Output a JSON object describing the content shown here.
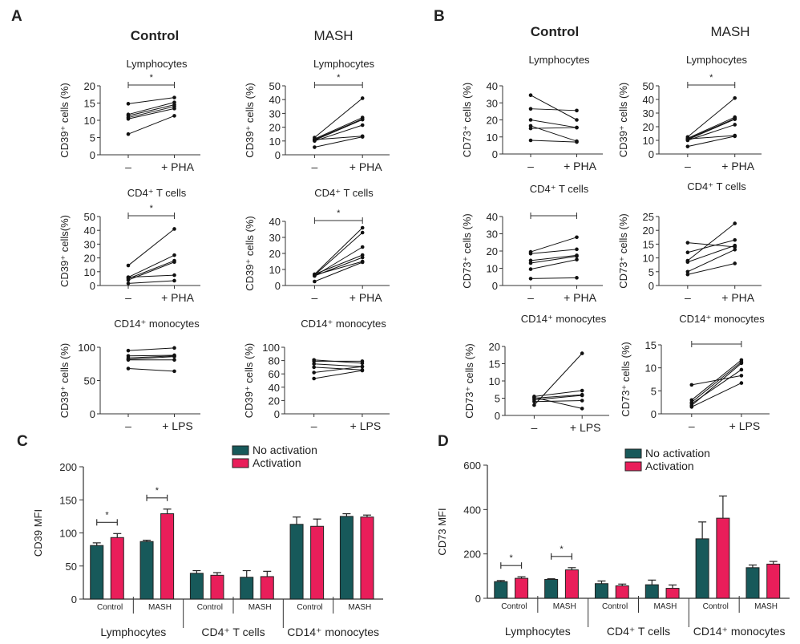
{
  "panels": {
    "A": {
      "letter": "A",
      "columns": [
        "Control",
        "MASH"
      ]
    },
    "B": {
      "letter": "B",
      "columns": [
        "Control",
        "MASH"
      ]
    },
    "C": {
      "letter": "C"
    },
    "D": {
      "letter": "D"
    }
  },
  "colors": {
    "no_activation": "#17595a",
    "activation": "#e91e5a",
    "axis": "#333333"
  },
  "chart_data": [
    {
      "id": "A-control-lymph",
      "type": "paired-line",
      "panel": "A",
      "column": "Control",
      "title": "Lymphocytes",
      "ylabel": "CD39⁺ cells (%)",
      "ylim": [
        0,
        20
      ],
      "yticks": [
        0,
        5,
        10,
        15,
        20
      ],
      "x": [
        "–",
        "+ PHA"
      ],
      "significance": "*",
      "bracket": true,
      "pairs": [
        [
          14.8,
          16.6
        ],
        [
          11.7,
          15.2
        ],
        [
          11.3,
          14.5
        ],
        [
          10.8,
          14.0
        ],
        [
          10.4,
          13.4
        ],
        [
          6.0,
          11.3
        ]
      ]
    },
    {
      "id": "A-mash-lymph",
      "type": "paired-line",
      "panel": "A",
      "column": "MASH",
      "title": "Lymphocytes",
      "ylabel": "CD39⁺ cells (%)",
      "ylim": [
        0,
        50
      ],
      "yticks": [
        0,
        10,
        20,
        30,
        40,
        50
      ],
      "x": [
        "–",
        "+ PHA"
      ],
      "significance": "*",
      "bracket": true,
      "pairs": [
        [
          12.5,
          41.0
        ],
        [
          11.5,
          27.0
        ],
        [
          11.0,
          26.0
        ],
        [
          10.5,
          25.5
        ],
        [
          10.0,
          21.5
        ],
        [
          11.0,
          13.5
        ],
        [
          5.5,
          13.0
        ]
      ]
    },
    {
      "id": "A-control-cd4",
      "type": "paired-line",
      "panel": "A",
      "column": "Control",
      "title": "CD4⁺ T cells",
      "ylabel": "CD39⁺ cells(%)",
      "ylim": [
        0,
        50
      ],
      "yticks": [
        0,
        10,
        20,
        30,
        40,
        50
      ],
      "x": [
        "–",
        "+ PHA"
      ],
      "significance": "*",
      "bracket": true,
      "pairs": [
        [
          14.5,
          41.0
        ],
        [
          6.0,
          22.0
        ],
        [
          5.0,
          18.0
        ],
        [
          4.0,
          17.0
        ],
        [
          6.0,
          7.5
        ],
        [
          1.5,
          3.5
        ]
      ]
    },
    {
      "id": "A-mash-cd4",
      "type": "paired-line",
      "panel": "A",
      "column": "MASH",
      "title": "CD4⁺ T cells",
      "ylabel": "CD39⁺ cells (%)",
      "ylim": [
        0,
        40
      ],
      "yticks": [
        0,
        10,
        20,
        30,
        40
      ],
      "x": [
        "–",
        "+ PHA"
      ],
      "significance": "*",
      "bracket": true,
      "pairs": [
        [
          7.0,
          36.0
        ],
        [
          6.5,
          33.0
        ],
        [
          6.0,
          24.0
        ],
        [
          7.0,
          19.0
        ],
        [
          6.0,
          17.5
        ],
        [
          6.5,
          15.0
        ],
        [
          2.5,
          14.5
        ]
      ]
    },
    {
      "id": "A-control-cd14",
      "type": "paired-line",
      "panel": "A",
      "column": "Control",
      "title": "CD14⁺ monocytes",
      "ylabel": "CD39⁺ cells (%)",
      "ylim": [
        0,
        100
      ],
      "yticks": [
        0,
        50,
        100
      ],
      "x": [
        "–",
        "+ LPS"
      ],
      "significance": "",
      "bracket": false,
      "pairs": [
        [
          95,
          99
        ],
        [
          87,
          88
        ],
        [
          84,
          87
        ],
        [
          82,
          86
        ],
        [
          81,
          81
        ],
        [
          68,
          64
        ]
      ]
    },
    {
      "id": "A-mash-cd14",
      "type": "paired-line",
      "panel": "A",
      "column": "MASH",
      "title": "CD14⁺ monocytes",
      "ylabel": "CD39⁺ cells (%)",
      "ylim": [
        0,
        100
      ],
      "yticks": [
        0,
        20,
        40,
        60,
        80,
        100
      ],
      "x": [
        "–",
        "+ LPS"
      ],
      "significance": "",
      "bracket": false,
      "pairs": [
        [
          81,
          76
        ],
        [
          79,
          79
        ],
        [
          75,
          71
        ],
        [
          70,
          66
        ],
        [
          62,
          71
        ],
        [
          53,
          65
        ]
      ]
    },
    {
      "id": "B-control-lymph",
      "type": "paired-line",
      "panel": "B",
      "column": "Control",
      "title": "Lymphocytes",
      "ylabel": "CD73⁺ cells (%)",
      "ylim": [
        0,
        40
      ],
      "yticks": [
        0,
        10,
        20,
        30,
        40
      ],
      "x": [
        "–",
        "+ PHA"
      ],
      "significance": "",
      "bracket": false,
      "pairs": [
        [
          34.5,
          20.0
        ],
        [
          26.5,
          25.5
        ],
        [
          20.0,
          15.5
        ],
        [
          16.5,
          7.5
        ],
        [
          15.0,
          15.5
        ],
        [
          8.0,
          7.0
        ]
      ]
    },
    {
      "id": "B-mash-lymph",
      "type": "paired-line",
      "panel": "B",
      "column": "MASH",
      "title": "Lymphocytes",
      "ylabel": "CD39⁺ cells (%)",
      "ylim": [
        0,
        50
      ],
      "yticks": [
        0,
        10,
        20,
        30,
        40,
        50
      ],
      "x": [
        "–",
        "+ PHA"
      ],
      "significance": "*",
      "bracket": true,
      "pairs": [
        [
          12.5,
          41.0
        ],
        [
          11.5,
          27.0
        ],
        [
          11.0,
          26.0
        ],
        [
          10.5,
          25.5
        ],
        [
          10.0,
          21.5
        ],
        [
          11.0,
          13.5
        ],
        [
          5.5,
          13.0
        ]
      ]
    },
    {
      "id": "B-control-cd4",
      "type": "paired-line",
      "panel": "B",
      "column": "Control",
      "title": "CD4⁺ T cells",
      "ylabel": "CD73⁺ cells (%)",
      "ylim": [
        0,
        40
      ],
      "yticks": [
        0,
        10,
        20,
        30,
        40
      ],
      "x": [
        "–",
        "+ PHA"
      ],
      "significance": "",
      "bracket": true,
      "pairs": [
        [
          19.5,
          28.0
        ],
        [
          18.5,
          21.0
        ],
        [
          14.5,
          17.5
        ],
        [
          13.0,
          17.0
        ],
        [
          9.5,
          15.0
        ],
        [
          4.0,
          4.5
        ]
      ]
    },
    {
      "id": "B-mash-cd4",
      "type": "paired-line",
      "panel": "B",
      "column": "MASH",
      "title": "CD4⁺ T cells",
      "ylabel": "CD73⁺ cells (%)",
      "ylim": [
        0,
        25
      ],
      "yticks": [
        0,
        5,
        10,
        15,
        20,
        25
      ],
      "x": [
        "–",
        "+ PHA"
      ],
      "significance": "",
      "bracket": false,
      "pairs": [
        [
          15.5,
          14.0
        ],
        [
          12.0,
          16.5
        ],
        [
          9.0,
          22.5
        ],
        [
          8.5,
          14.5
        ],
        [
          5.0,
          13.0
        ],
        [
          4.0,
          8.0
        ]
      ]
    },
    {
      "id": "B-control-cd14",
      "type": "paired-line",
      "panel": "B",
      "column": "Control",
      "title": "CD14⁺ monocytes",
      "ylabel": "CD73⁺ cells (%)",
      "ylim": [
        0,
        20
      ],
      "yticks": [
        0,
        5,
        10,
        15,
        20
      ],
      "x": [
        "–",
        "+ LPS"
      ],
      "significance": "",
      "bracket": false,
      "pairs": [
        [
          3.0,
          18.0
        ],
        [
          5.5,
          7.2
        ],
        [
          5.0,
          6.0
        ],
        [
          4.5,
          5.8
        ],
        [
          4.0,
          4.3
        ],
        [
          5.2,
          2.0
        ]
      ]
    },
    {
      "id": "B-mash-cd14",
      "type": "paired-line",
      "panel": "B",
      "column": "MASH",
      "title": "CD14⁺ monocytes",
      "ylabel": "CD73⁺ cells (%)",
      "ylim": [
        0,
        15
      ],
      "yticks": [
        0,
        5,
        10,
        15
      ],
      "x": [
        "–",
        "+ LPS"
      ],
      "significance": "",
      "bracket": true,
      "pairs": [
        [
          6.3,
          8.3
        ],
        [
          3.0,
          11.7
        ],
        [
          2.5,
          11.3
        ],
        [
          2.2,
          9.6
        ],
        [
          1.8,
          11.0
        ],
        [
          1.5,
          6.7
        ]
      ]
    },
    {
      "id": "C",
      "type": "bar",
      "panel": "C",
      "ylabel": "CD39 MFI",
      "ylim": [
        0,
        200
      ],
      "yticks": [
        0,
        50,
        100,
        150,
        200
      ],
      "legend": [
        "No activation",
        "Activation"
      ],
      "legend_position": "top-center",
      "groups": [
        {
          "label": "Lymphocytes",
          "subgroups": [
            {
              "label": "Control",
              "values": [
                81,
                93
              ],
              "errors": [
                4,
                6
              ],
              "significance": "*"
            },
            {
              "label": "MASH",
              "values": [
                87,
                129
              ],
              "errors": [
                2,
                7
              ],
              "significance": "*"
            }
          ]
        },
        {
          "label": "CD4⁺ T cells",
          "subgroups": [
            {
              "label": "Control",
              "values": [
                39,
                36
              ],
              "errors": [
                4,
                4
              ],
              "significance": ""
            },
            {
              "label": "MASH",
              "values": [
                33,
                34
              ],
              "errors": [
                10,
                8
              ],
              "significance": ""
            }
          ]
        },
        {
          "label": "CD14⁺ monocytes",
          "subgroups": [
            {
              "label": "Control",
              "values": [
                113,
                110
              ],
              "errors": [
                11,
                11
              ],
              "significance": ""
            },
            {
              "label": "MASH",
              "values": [
                125,
                124
              ],
              "errors": [
                4,
                3
              ],
              "significance": ""
            }
          ]
        }
      ]
    },
    {
      "id": "D",
      "type": "bar",
      "panel": "D",
      "ylabel": "CD73 MFI",
      "ylim": [
        0,
        600
      ],
      "yticks": [
        0,
        200,
        400,
        600
      ],
      "legend": [
        "No activation",
        "Activation"
      ],
      "legend_position": "top-center",
      "groups": [
        {
          "label": "Lymphocytes",
          "subgroups": [
            {
              "label": "Control",
              "values": [
                75,
                90
              ],
              "errors": [
                5,
                7
              ],
              "significance": "*"
            },
            {
              "label": "MASH",
              "values": [
                85,
                128
              ],
              "errors": [
                3,
                10
              ],
              "significance": "*"
            }
          ]
        },
        {
          "label": "CD4⁺ T cells",
          "subgroups": [
            {
              "label": "Control",
              "values": [
                66,
                56
              ],
              "errors": [
                12,
                8
              ],
              "significance": ""
            },
            {
              "label": "MASH",
              "values": [
                61,
                45
              ],
              "errors": [
                21,
                15
              ],
              "significance": ""
            }
          ]
        },
        {
          "label": "CD14⁺ monocytes",
          "subgroups": [
            {
              "label": "Control",
              "values": [
                268,
                361
              ],
              "errors": [
                76,
                100
              ],
              "significance": ""
            },
            {
              "label": "MASH",
              "values": [
                138,
                154
              ],
              "errors": [
                12,
                12
              ],
              "significance": ""
            }
          ]
        }
      ]
    }
  ]
}
